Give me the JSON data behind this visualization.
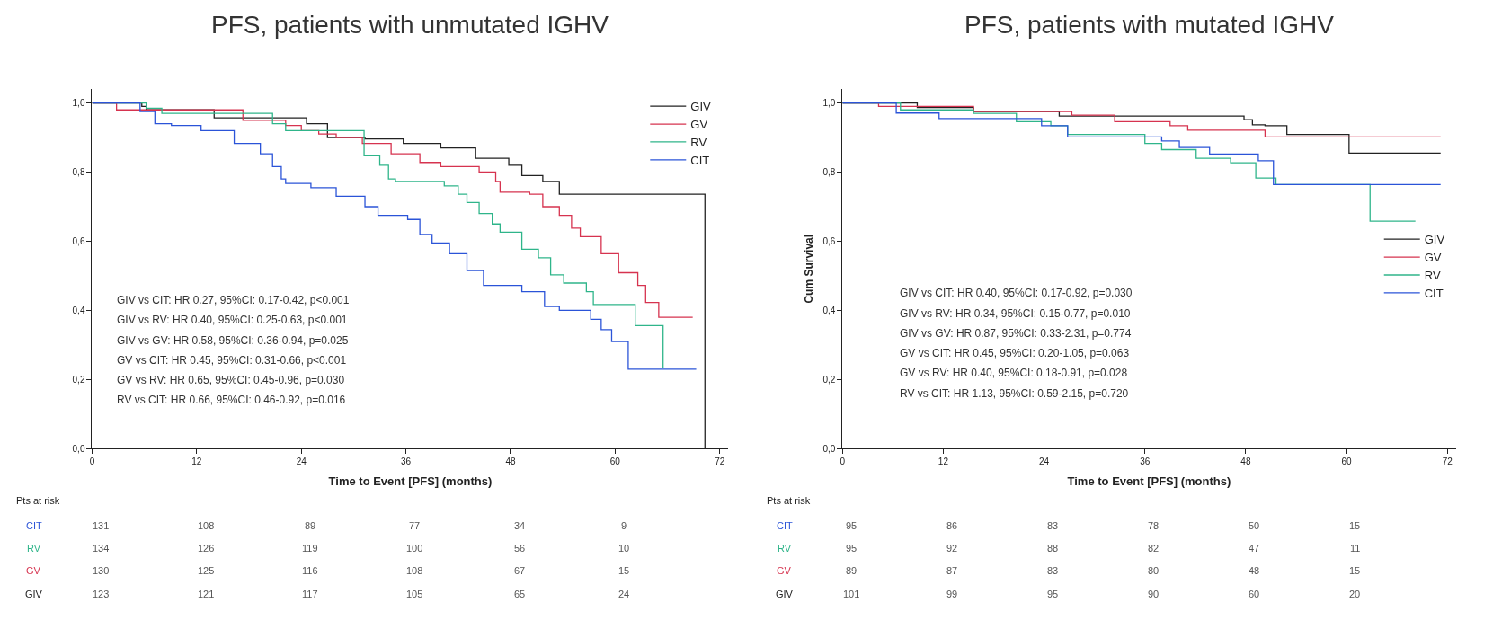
{
  "chart_data": [
    {
      "type": "step",
      "title": "PFS, patients with unmutated IGHV",
      "xlabel": "Time to Event [PFS] (months)",
      "legend": "top right",
      "grid": false,
      "xlim": [
        0,
        73
      ],
      "xticks": [
        0,
        12,
        24,
        36,
        48,
        60,
        72
      ],
      "ylim": [
        0,
        1.04
      ],
      "yticks": [
        {
          "value": 0,
          "label": "0,0"
        },
        {
          "value": 0.2,
          "label": "0,2"
        },
        {
          "value": 0.4,
          "label": "0,4"
        },
        {
          "value": 0.6,
          "label": "0,6"
        },
        {
          "value": 0.8,
          "label": "0,8"
        },
        {
          "value": 1,
          "label": "1,0"
        }
      ],
      "series": [
        {
          "name": "GIV",
          "color": "#222222",
          "x": [
            0,
            5.7,
            6.2,
            14,
            24.6,
            27,
            31.3,
            35.7,
            40,
            44,
            47.8,
            49.3,
            51.7,
            53.6,
            70.3,
            70.3
          ],
          "values": [
            1,
            0.99,
            0.98,
            0.957,
            0.94,
            0.9,
            0.896,
            0.883,
            0.87,
            0.84,
            0.82,
            0.79,
            0.773,
            0.736,
            0.736,
            0
          ]
        },
        {
          "name": "GV",
          "color": "#d6334f",
          "x": [
            0,
            2.8,
            17.3,
            22.2,
            24,
            26,
            28,
            31,
            34.3,
            37.6,
            40,
            44.4,
            46.3,
            46.8,
            50.2,
            51.7,
            53.6,
            55,
            56,
            58.4,
            60.4,
            62.6,
            63.5,
            65,
            68.9
          ],
          "values": [
            1,
            0.98,
            0.95,
            0.935,
            0.92,
            0.91,
            0.9,
            0.883,
            0.853,
            0.828,
            0.816,
            0.8,
            0.773,
            0.742,
            0.736,
            0.7,
            0.675,
            0.638,
            0.613,
            0.564,
            0.509,
            0.472,
            0.423,
            0.38,
            0.38
          ]
        },
        {
          "name": "RV",
          "color": "#2fb58a",
          "x": [
            0,
            6.2,
            8,
            20.7,
            22.2,
            31.2,
            33,
            34,
            34.8,
            40.4,
            42,
            43,
            44.4,
            45.9,
            46.8,
            49.3,
            51.2,
            52.6,
            54.1,
            56.7,
            57.5,
            62.3,
            65.5
          ],
          "values": [
            1,
            0.985,
            0.97,
            0.94,
            0.92,
            0.847,
            0.82,
            0.78,
            0.773,
            0.76,
            0.736,
            0.712,
            0.68,
            0.65,
            0.626,
            0.577,
            0.552,
            0.503,
            0.479,
            0.454,
            0.417,
            0.356,
            0.233
          ]
        },
        {
          "name": "CIT",
          "color": "#2b54d8",
          "x": [
            0,
            5.5,
            7.2,
            9.1,
            12.5,
            16.3,
            19.3,
            20.7,
            21.7,
            22.2,
            25.1,
            28,
            31.3,
            32.8,
            36.2,
            37.6,
            39,
            41,
            43,
            44.9,
            49.3,
            51.9,
            53.6,
            57.2,
            58.4,
            59.6,
            61.5,
            69.3
          ],
          "values": [
            1,
            0.975,
            0.94,
            0.935,
            0.92,
            0.883,
            0.853,
            0.816,
            0.78,
            0.767,
            0.755,
            0.73,
            0.7,
            0.675,
            0.663,
            0.62,
            0.595,
            0.564,
            0.515,
            0.472,
            0.454,
            0.411,
            0.4,
            0.374,
            0.344,
            0.31,
            0.23,
            0.23
          ]
        }
      ],
      "annotations": [
        "GIV vs CIT: HR 0.27, 95%CI: 0.17-0.42, p<0.001",
        "GIV vs RV: HR 0.40, 95%CI: 0.25-0.63, p<0.001",
        "GIV vs GV: HR 0.58, 95%CI: 0.36-0.94, p=0.025",
        "GV vs CIT: HR 0.45, 95%CI: 0.31-0.66, p<0.001",
        "GV vs RV: HR 0.65, 95%CI: 0.45-0.96, p=0.030",
        "RV vs CIT: HR 0.66, 95%CI: 0.46-0.92, p=0.016",
        "Pts at risk",
        "CIT",
        "131",
        "108",
        "89",
        "77",
        "34",
        "9",
        "RV",
        "134",
        "126",
        "119",
        "100",
        "56",
        "10",
        "GV",
        "130",
        "125",
        "116",
        "108",
        "67",
        "15",
        "GIV",
        "123",
        "121",
        "117",
        "105",
        "65",
        "24"
      ]
    },
    {
      "type": "step",
      "title": "PFS, patients with mutated IGHV",
      "xlabel": "Time to Event [PFS] (months)",
      "ylabel": "Cum Survival",
      "legend": "right",
      "grid": false,
      "xlim": [
        0,
        73
      ],
      "xticks": [
        0,
        12,
        24,
        36,
        48,
        60,
        72
      ],
      "ylim": [
        0,
        1.04
      ],
      "yticks": [
        {
          "value": 0,
          "label": "0,0"
        },
        {
          "value": 0.2,
          "label": "0,2"
        },
        {
          "value": 0.4,
          "label": "0,4"
        },
        {
          "value": 0.6,
          "label": "0,6"
        },
        {
          "value": 0.8,
          "label": "0,8"
        },
        {
          "value": 1,
          "label": "1,0"
        }
      ],
      "series": [
        {
          "name": "GIV",
          "color": "#222222",
          "x": [
            0,
            8.9,
            15.6,
            25.8,
            47.8,
            48.8,
            50.3,
            52.9,
            60.3,
            71.2
          ],
          "values": [
            1,
            0.987,
            0.975,
            0.962,
            0.952,
            0.937,
            0.934,
            0.909,
            0.855,
            0.855
          ]
        },
        {
          "name": "GV",
          "color": "#d6334f",
          "x": [
            0,
            4.3,
            15.6,
            27.3,
            32.4,
            39,
            41.1,
            50.3,
            71.2
          ],
          "values": [
            1,
            0.99,
            0.975,
            0.965,
            0.946,
            0.934,
            0.921,
            0.902,
            0.902
          ]
        },
        {
          "name": "RV",
          "color": "#2fb58a",
          "x": [
            0,
            6.9,
            15.6,
            20.7,
            24.8,
            26.8,
            36,
            38,
            42.1,
            46.2,
            49.2,
            51.6,
            62.8,
            68.2
          ],
          "values": [
            1,
            0.98,
            0.97,
            0.946,
            0.934,
            0.909,
            0.883,
            0.865,
            0.84,
            0.827,
            0.783,
            0.764,
            0.658,
            0.658
          ]
        },
        {
          "name": "CIT",
          "color": "#2b54d8",
          "x": [
            0,
            6.4,
            11.5,
            23.7,
            26.8,
            38,
            40.1,
            43.7,
            49.5,
            51.3,
            71.2
          ],
          "values": [
            1,
            0.971,
            0.955,
            0.934,
            0.902,
            0.89,
            0.871,
            0.852,
            0.833,
            0.764,
            0.764
          ]
        }
      ],
      "annotations": [
        "GIV vs CIT: HR 0.40, 95%CI: 0.17-0.92, p=0.030",
        "GIV vs RV: HR 0.34, 95%CI: 0.15-0.77, p=0.010",
        "GIV vs GV: HR 0.87, 95%CI: 0.33-2.31, p=0.774",
        "GV vs CIT: HR 0.45, 95%CI: 0.20-1.05, p=0.063",
        "GV vs RV: HR 0.40, 95%CI: 0.18-0.91, p=0.028",
        "RV vs CIT: HR 1.13, 95%CI: 0.59-2.15, p=0.720",
        "Pts at risk",
        "CIT",
        "95",
        "86",
        "83",
        "78",
        "50",
        "15",
        "RV",
        "95",
        "92",
        "88",
        "82",
        "47",
        "11",
        "GV",
        "89",
        "87",
        "83",
        "80",
        "48",
        "15",
        "GIV",
        "101",
        "99",
        "95",
        "90",
        "60",
        "20"
      ]
    }
  ]
}
